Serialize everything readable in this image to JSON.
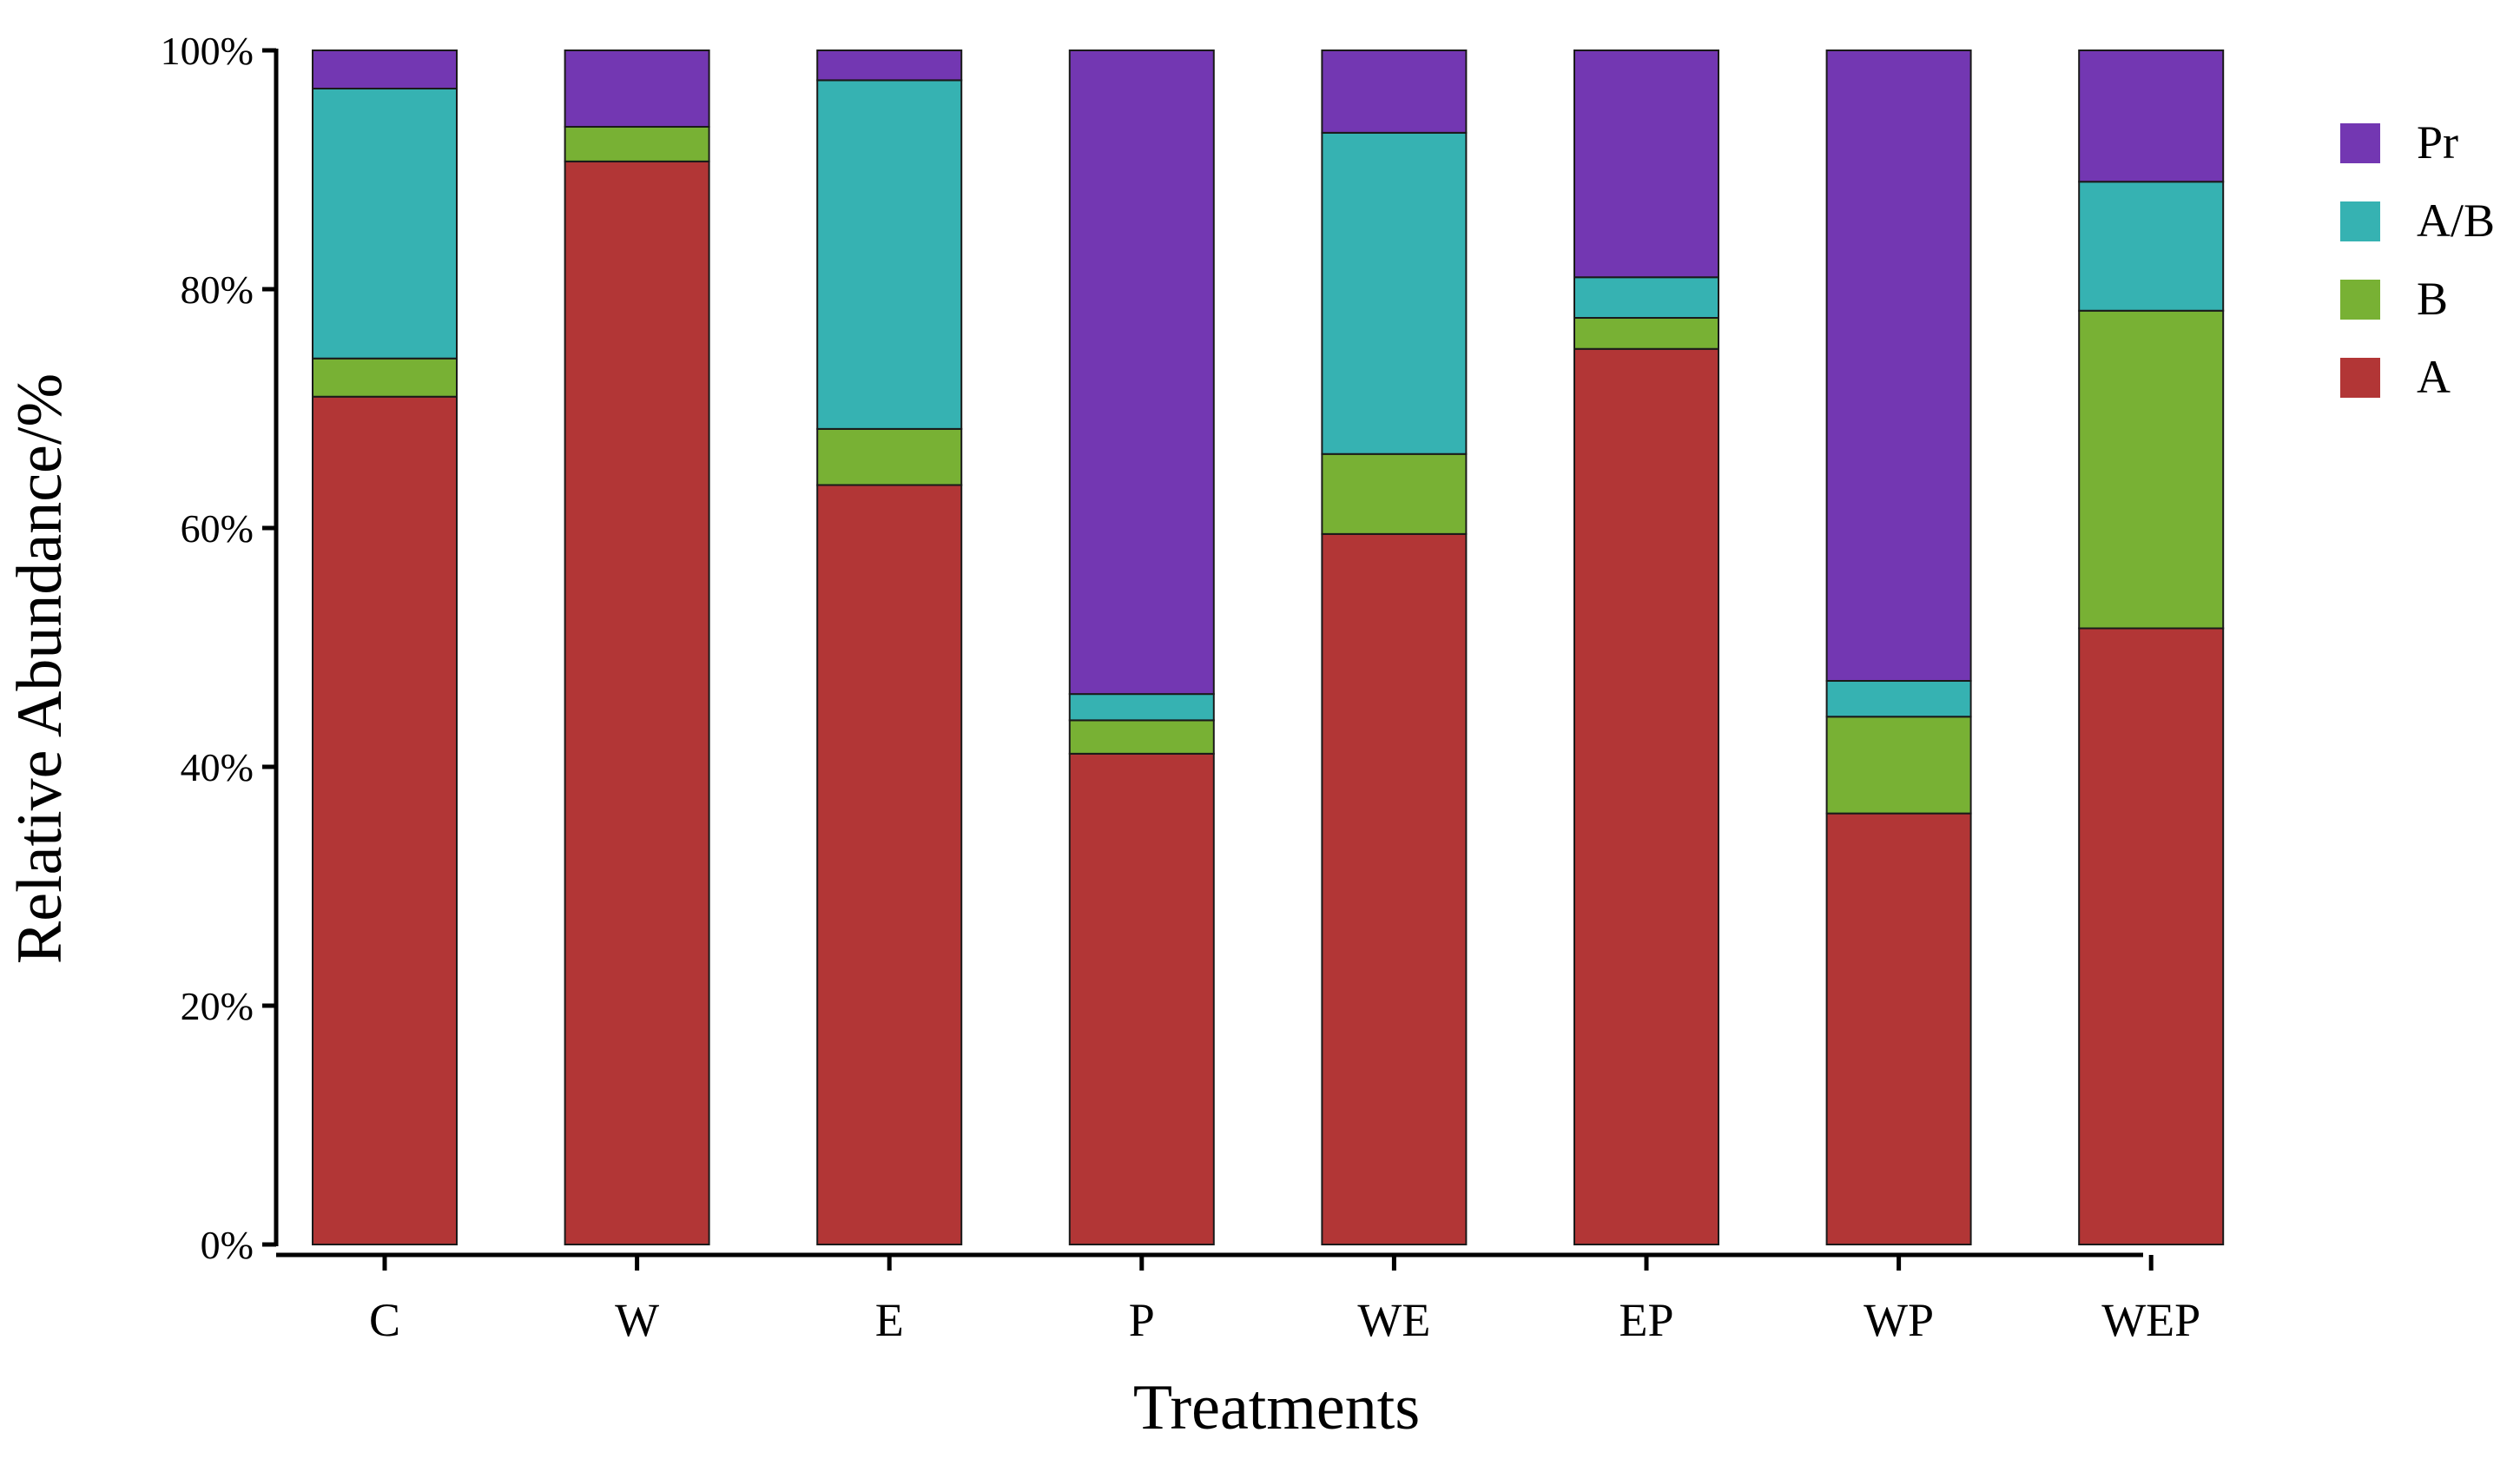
{
  "chart_data": {
    "type": "bar",
    "stacked": true,
    "title": "",
    "xlabel": "Treatments",
    "ylabel": "Relative Abundance/%",
    "ylim": [
      0,
      100
    ],
    "yticks": [
      0,
      20,
      40,
      60,
      80,
      100
    ],
    "ytick_labels": [
      "0%",
      "20%",
      "40%",
      "60%",
      "80%",
      "100%"
    ],
    "categories": [
      "C",
      "W",
      "E",
      "P",
      "WE",
      "EP",
      "WP",
      "WEP"
    ],
    "series": [
      {
        "name": "A",
        "color": "#b23636",
        "values": [
          71.0,
          90.7,
          63.6,
          41.1,
          59.5,
          75.0,
          36.1,
          51.6
        ]
      },
      {
        "name": "B",
        "color": "#78b134",
        "values": [
          3.2,
          2.9,
          4.7,
          2.8,
          6.7,
          2.6,
          8.1,
          26.6
        ]
      },
      {
        "name": "A/B",
        "color": "#36b2b2",
        "values": [
          22.6,
          0.0,
          29.2,
          2.2,
          26.9,
          3.4,
          3.0,
          10.8
        ]
      },
      {
        "name": "Pr",
        "color": "#7337b2",
        "values": [
          3.2,
          6.4,
          2.5,
          53.9,
          6.9,
          19.0,
          52.8,
          11.0
        ]
      }
    ],
    "legend": {
      "position": "top-right",
      "order": [
        "Pr",
        "A/B",
        "B",
        "A"
      ]
    },
    "grid": false
  }
}
